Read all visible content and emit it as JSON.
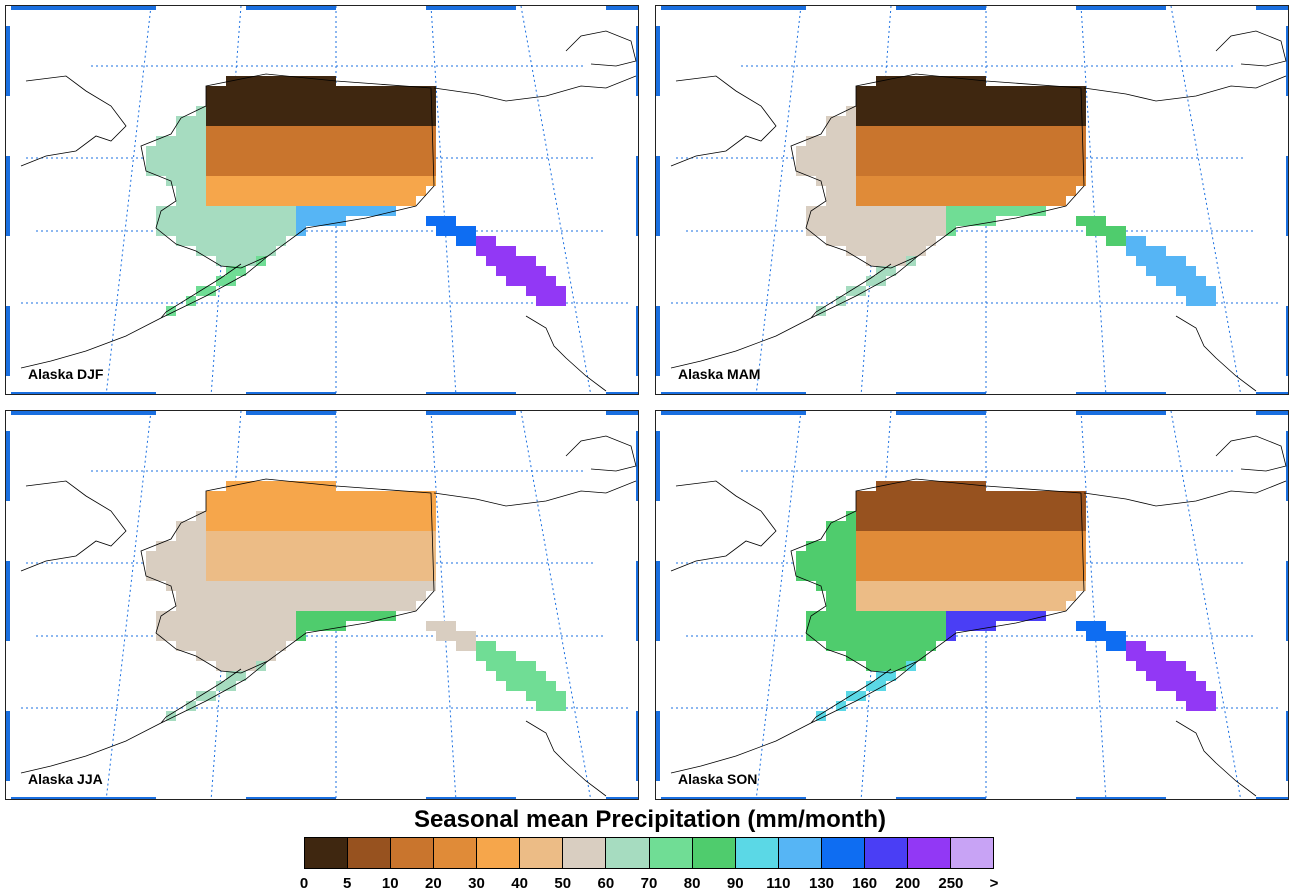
{
  "panels": [
    {
      "id": "p-djf",
      "label": "Alaska DJF",
      "levels": {
        "north": 0,
        "central": 2,
        "south": 4,
        "southwest": 7,
        "coast": 11,
        "panhandle": 14
      }
    },
    {
      "id": "p-mam",
      "label": "Alaska MAM",
      "levels": {
        "north": 0,
        "central": 2,
        "south": 3,
        "southwest": 6,
        "coast": 8,
        "panhandle": 11
      }
    },
    {
      "id": "p-jja",
      "label": "Alaska JJA",
      "levels": {
        "north": 4,
        "central": 5,
        "south": 6,
        "southwest": 6,
        "coast": 9,
        "panhandle": 8
      }
    },
    {
      "id": "p-son",
      "label": "Alaska SON",
      "levels": {
        "north": 1,
        "central": 3,
        "south": 5,
        "southwest": 9,
        "coast": 13,
        "panhandle": 14
      }
    }
  ],
  "colorbar": {
    "title": "Seasonal mean Precipitation (mm/month)",
    "colors": [
      "#3f2710",
      "#97521f",
      "#c9752d",
      "#e08b38",
      "#f6a64b",
      "#ecbc86",
      "#d9cec1",
      "#a6dcc0",
      "#70dd95",
      "#4fcc6d",
      "#5bd8e6",
      "#56b5f5",
      "#0e6df2",
      "#4a3ef5",
      "#9238f5",
      "#c8a3f5"
    ],
    "ticks": [
      "0",
      "5",
      "10",
      "20",
      "30",
      "40",
      "50",
      "60",
      "70",
      "80",
      "90",
      "110",
      "130",
      "160",
      "200",
      "250",
      ">"
    ]
  },
  "map_style": {
    "gridline_color": "#1a6fe0",
    "frame_color": "#1a6fe0",
    "coast_color": "#000000"
  }
}
